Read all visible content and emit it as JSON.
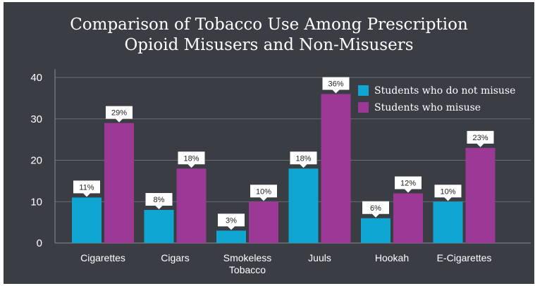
{
  "chart_data": {
    "type": "bar",
    "title_lines": [
      "Comparison of Tobacco Use Among Prescription",
      "Opioid Misusers and Non-Misusers"
    ],
    "categories": [
      [
        "Cigarettes"
      ],
      [
        "Cigars"
      ],
      [
        "Smokeless",
        "Tobacco"
      ],
      [
        "Juuls"
      ],
      [
        "Hookah"
      ],
      [
        "E-Cigarettes"
      ]
    ],
    "series": [
      {
        "name": "Students who do not misuse",
        "color": "#0fa6d2",
        "values": [
          11,
          8,
          3,
          18,
          6,
          10
        ],
        "labels": [
          "11%",
          "8%",
          "3%",
          "18%",
          "6%",
          "10%"
        ]
      },
      {
        "name": "Students who misuse",
        "color": "#9c3996",
        "values": [
          29,
          18,
          10,
          36,
          12,
          23
        ],
        "labels": [
          "29%",
          "18%",
          "10%",
          "36%",
          "12%",
          "23%"
        ]
      }
    ],
    "yticks": [
      "0",
      "10",
      "20",
      "30",
      "40"
    ],
    "ylim": [
      0,
      40
    ],
    "grid": true,
    "legend": "top-right",
    "xlabel": "",
    "ylabel": ""
  }
}
